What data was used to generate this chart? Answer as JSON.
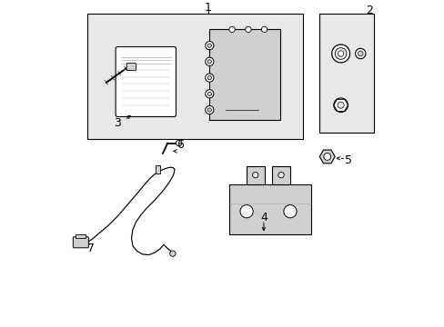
{
  "bg_color": "#ffffff",
  "line_color": "#000000",
  "fill_light": "#e8e8e8",
  "fill_medium": "#d0d0d0",
  "font_size_label": 9
}
